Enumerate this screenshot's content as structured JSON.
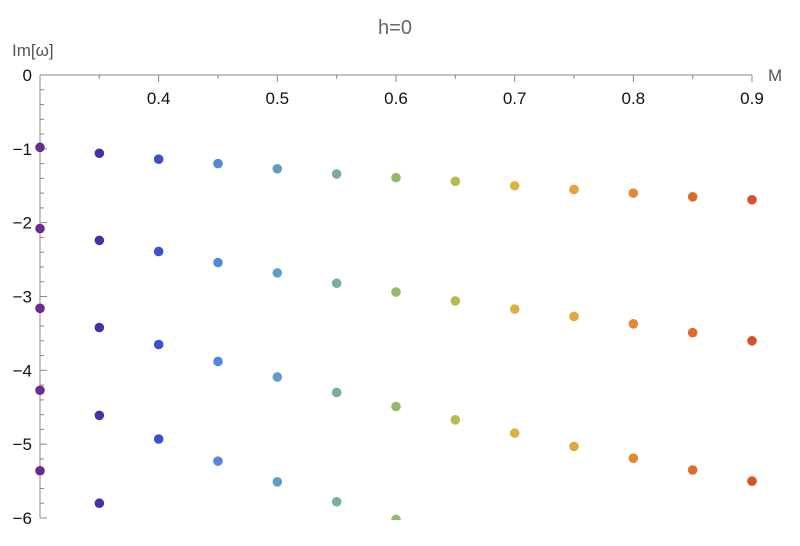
{
  "chart_data": {
    "type": "scatter",
    "title": "h=0",
    "xlabel": "M",
    "ylabel": "Im[ω]",
    "xlim": [
      0.3,
      0.9
    ],
    "ylim": [
      -6,
      0
    ],
    "xticks": [
      0.4,
      0.5,
      0.6,
      0.7,
      0.8,
      0.9
    ],
    "xtick_labels": [
      "0.4",
      "0.5",
      "0.6",
      "0.7",
      "0.8",
      "0.9"
    ],
    "yticks": [
      0,
      -1,
      -2,
      -3,
      -4,
      -5,
      -6
    ],
    "ytick_labels": [
      "0",
      "−1",
      "−2",
      "−3",
      "−4",
      "−5",
      "−6"
    ],
    "grid": false,
    "legend": "none",
    "x": [
      0.3,
      0.35,
      0.4,
      0.45,
      0.5,
      0.55,
      0.6,
      0.65,
      0.7,
      0.75,
      0.8,
      0.85,
      0.9
    ],
    "point_colors": [
      "#6B2D8B",
      "#4531A8",
      "#3F4FC9",
      "#5288D4",
      "#5E9EC4",
      "#78AE9D",
      "#97B86C",
      "#B7BB4F",
      "#D7B540",
      "#E2A63A",
      "#E48834",
      "#DE6A31",
      "#D5502B"
    ],
    "series": [
      {
        "values": [
          -0.98,
          -1.06,
          -1.14,
          -1.2,
          -1.27,
          -1.34,
          -1.39,
          -1.44,
          -1.5,
          -1.55,
          -1.6,
          -1.65,
          -1.69
        ]
      },
      {
        "values": [
          -2.08,
          -2.24,
          -2.39,
          -2.54,
          -2.68,
          -2.82,
          -2.94,
          -3.06,
          -3.17,
          -3.27,
          -3.37,
          -3.49,
          -3.6
        ]
      },
      {
        "values": [
          -3.16,
          -3.42,
          -3.65,
          -3.88,
          -4.09,
          -4.3,
          -4.49,
          -4.67,
          -4.85,
          -5.03,
          -5.19,
          -5.35,
          -5.5
        ]
      },
      {
        "values": [
          -4.27,
          -4.61,
          -4.93,
          -5.23,
          -5.51,
          -5.78,
          -6.02,
          null,
          null,
          null,
          null,
          null,
          null
        ]
      },
      {
        "values": [
          -5.36,
          -5.8,
          null,
          null,
          null,
          null,
          null,
          null,
          null,
          null,
          null,
          null,
          null
        ]
      }
    ]
  }
}
